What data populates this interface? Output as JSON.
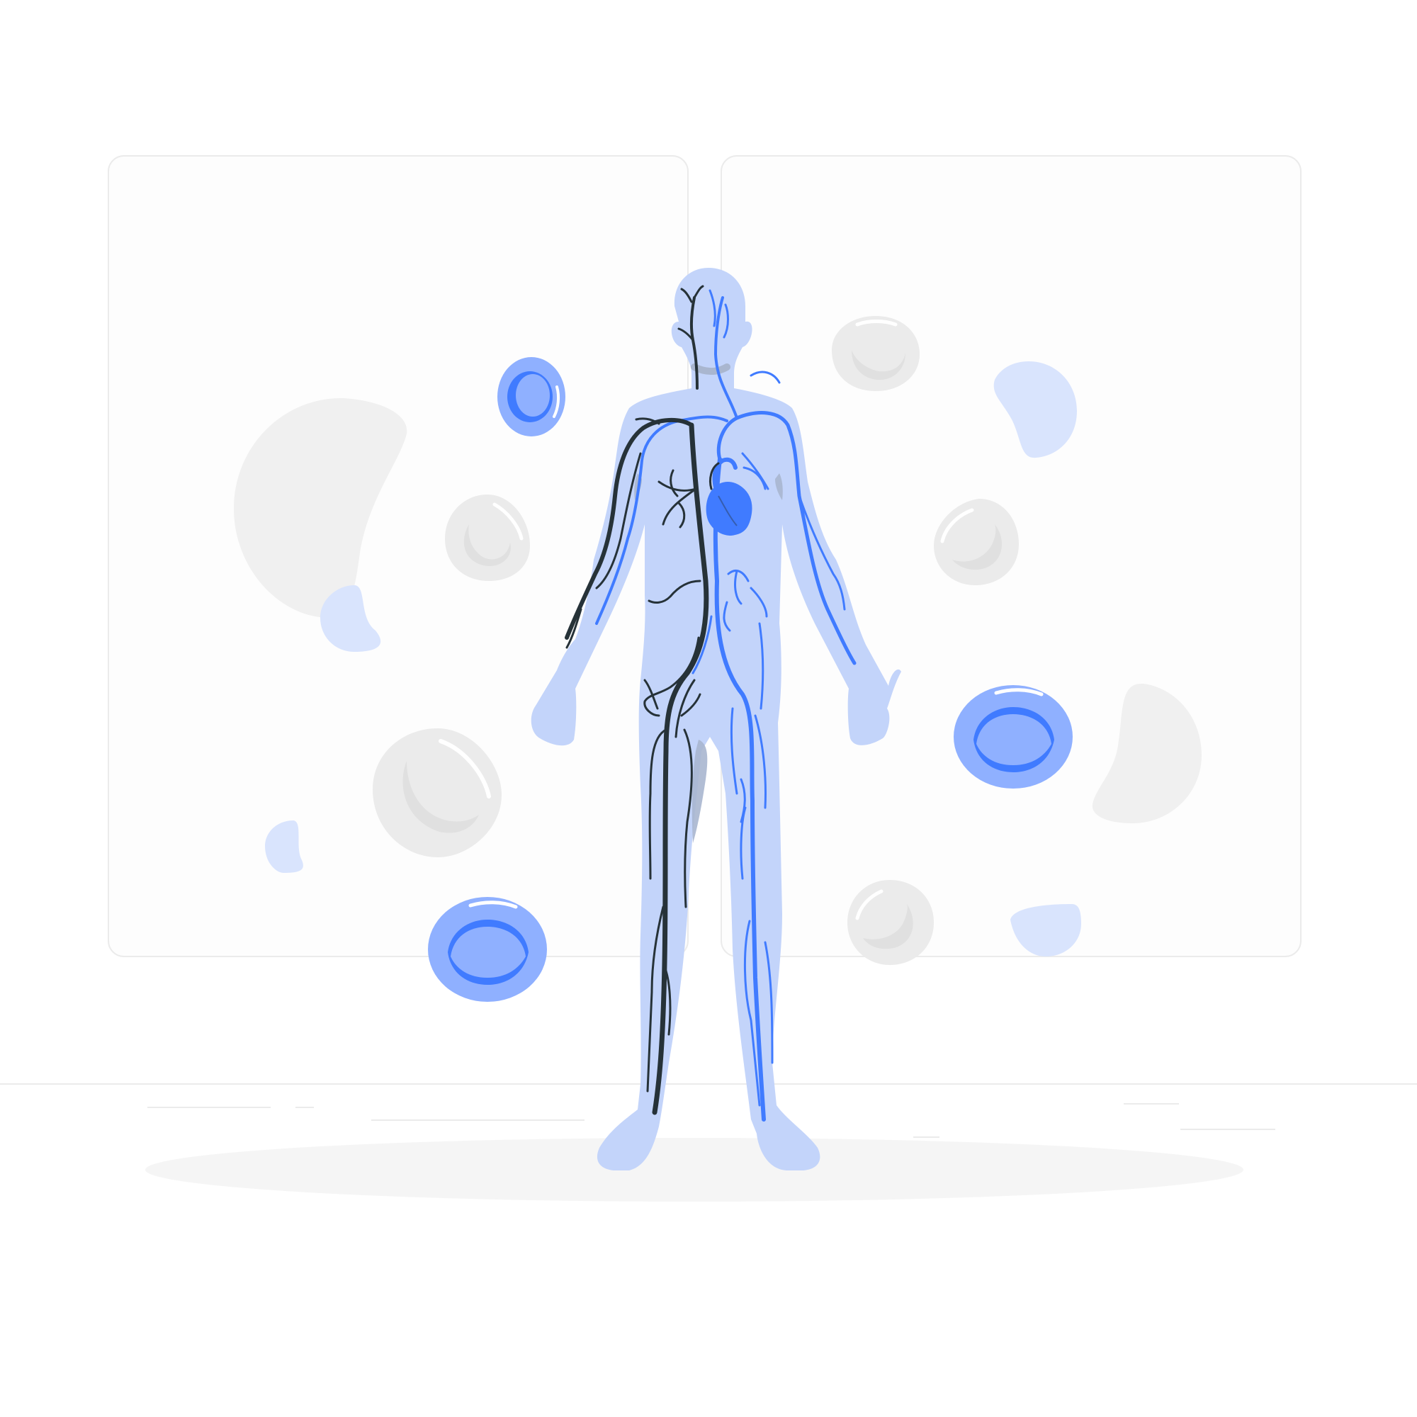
{
  "scene": {
    "subject": "human-circulatory-system",
    "colors": {
      "background": "#ffffff",
      "panel_fill": "#fdfdfd",
      "panel_stroke": "#ebebeb",
      "floor_line": "#ebebeb",
      "floor_shadow": "#f5f5f5",
      "body_fill": "#c3d4fa",
      "body_shadow": "#a9b6cf",
      "artery_blue": "#407bff",
      "vein_dark": "#263238",
      "heart": "#407bff",
      "cell_blue_fill": "#8fb0ff",
      "cell_blue_inner": "#407bff",
      "cell_grey_fill": "#ebebeb",
      "cell_grey_inner": "#e0e0e0",
      "blob_light_blue": "#d9e4fd",
      "blob_grey": "#f0f0f0",
      "highlight": "#ffffff"
    },
    "icons": [
      "human-body-icon",
      "heart-icon",
      "red-blood-cell-icon",
      "white-blood-cell-icon",
      "platelet-icon"
    ]
  }
}
